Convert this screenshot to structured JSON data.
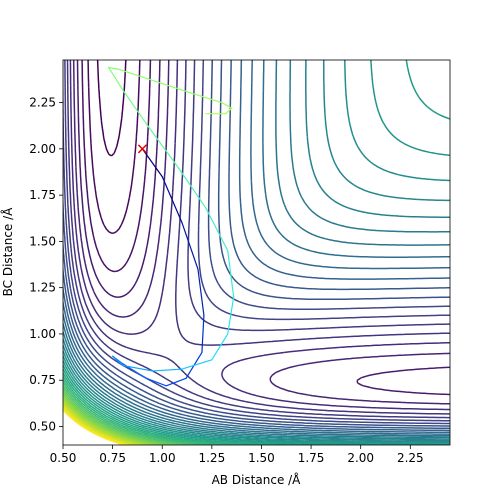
{
  "chart_data": {
    "type": "contour",
    "x_label": "AB Distance /Å",
    "y_label": "BC Distance /Å",
    "xlim": [
      0.5,
      2.45
    ],
    "ylim": [
      0.4,
      2.48
    ],
    "xticks": [
      {
        "value": 0.5,
        "label": "0.50"
      },
      {
        "value": 0.75,
        "label": "0.75"
      },
      {
        "value": 1,
        "label": "1.00"
      },
      {
        "value": 1.25,
        "label": "1.25"
      },
      {
        "value": 1.5,
        "label": "1.50"
      },
      {
        "value": 1.75,
        "label": "1.75"
      },
      {
        "value": 2,
        "label": "2.00"
      },
      {
        "value": 2.25,
        "label": "2.25"
      }
    ],
    "yticks": [
      {
        "value": 0.5,
        "label": "0.50"
      },
      {
        "value": 0.75,
        "label": "0.75"
      },
      {
        "value": 1,
        "label": "1.00"
      },
      {
        "value": 1.25,
        "label": "1.25"
      },
      {
        "value": 1.5,
        "label": "1.50"
      },
      {
        "value": 1.75,
        "label": "1.75"
      },
      {
        "value": 2,
        "label": "2.00"
      },
      {
        "value": 2.25,
        "label": "2.25"
      }
    ],
    "colormap": "viridis",
    "trajectory": {
      "color_stops": [
        "#00007f",
        "#0050ff",
        "#20e0ff",
        "#7dff7a",
        "#b0ff50"
      ],
      "x": [
        0.9,
        1.0,
        1.1,
        1.18,
        1.21,
        1.2,
        1.12,
        1.02,
        0.92,
        0.8,
        0.75,
        0.8,
        0.95,
        1.1,
        1.25,
        1.33,
        1.36,
        1.33,
        1.22,
        1.08,
        0.93,
        0.8,
        0.73,
        0.78,
        0.95,
        1.15,
        1.3,
        1.35,
        1.32,
        1.22
      ],
      "y": [
        2.0,
        1.85,
        1.6,
        1.35,
        1.1,
        0.9,
        0.76,
        0.72,
        0.76,
        0.84,
        0.88,
        0.83,
        0.8,
        0.81,
        0.86,
        1.0,
        1.2,
        1.45,
        1.68,
        1.9,
        2.12,
        2.32,
        2.44,
        2.43,
        2.37,
        2.3,
        2.25,
        2.22,
        2.19,
        2.19
      ]
    },
    "start": {
      "x": 0.9,
      "y": 2.0,
      "color": "#e00000"
    }
  }
}
